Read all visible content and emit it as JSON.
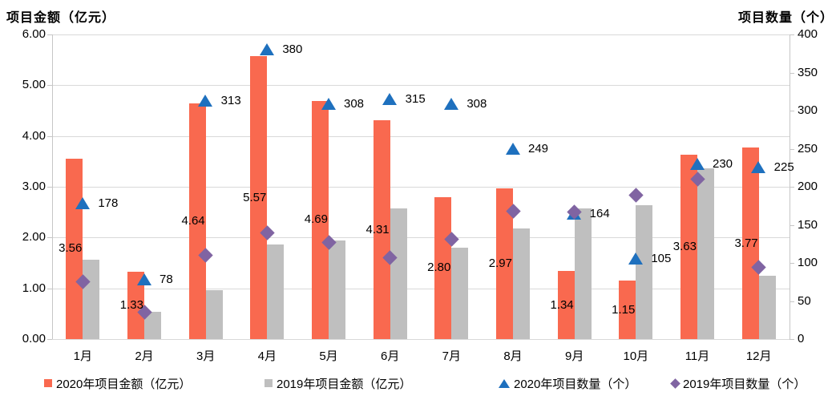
{
  "chart_data": {
    "type": "combo-bar-scatter-dual-axis",
    "categories": [
      "1月",
      "2月",
      "3月",
      "4月",
      "5月",
      "6月",
      "7月",
      "8月",
      "9月",
      "10月",
      "11月",
      "12月"
    ],
    "left_axis": {
      "title": "项目金额（亿元）",
      "min": 0,
      "max": 6,
      "step": 1,
      "tick_labels": [
        "0.00",
        "1.00",
        "2.00",
        "3.00",
        "4.00",
        "5.00",
        "6.00"
      ]
    },
    "right_axis": {
      "title": "项目数量（个）",
      "min": 0,
      "max": 400,
      "step": 50,
      "tick_labels": [
        "0",
        "50",
        "100",
        "150",
        "200",
        "250",
        "300",
        "350",
        "400"
      ]
    },
    "grid": true,
    "legend_position": "bottom",
    "series": [
      {
        "name": "2020年项目金额（亿元）",
        "type": "bar",
        "axis": "left",
        "color": "#f9694f",
        "values": [
          3.56,
          1.33,
          4.64,
          5.57,
          4.69,
          4.31,
          2.8,
          2.97,
          1.34,
          1.15,
          3.63,
          3.77
        ],
        "data_labels": [
          "3.56",
          "1.33",
          "4.64",
          "5.57",
          "4.69",
          "4.31",
          "2.80",
          "2.97",
          "1.34",
          "1.15",
          "3.63",
          "3.77"
        ]
      },
      {
        "name": "2019年项目金额（亿元）",
        "type": "bar",
        "axis": "left",
        "color": "#bfbfbf",
        "values": [
          1.57,
          0.54,
          0.97,
          1.86,
          1.94,
          2.57,
          1.8,
          2.18,
          2.57,
          2.63,
          3.37,
          1.25
        ],
        "data_labels": null
      },
      {
        "name": "2020年项目数量（个）",
        "type": "scatter-triangle",
        "axis": "right",
        "color": "#1e70be",
        "values": [
          178,
          78,
          313,
          380,
          308,
          315,
          308,
          249,
          164,
          105,
          230,
          225
        ],
        "data_labels": [
          "178",
          "78",
          "313",
          "380",
          "308",
          "315",
          "308",
          "249",
          "164",
          "105",
          "230",
          "225"
        ]
      },
      {
        "name": "2019年项目数量（个）",
        "type": "scatter-diamond",
        "axis": "right",
        "color": "#8064a2",
        "values": [
          75,
          35,
          110,
          140,
          127,
          107,
          131,
          168,
          167,
          189,
          210,
          94
        ],
        "data_labels": null
      }
    ],
    "colors": {
      "bar_2020": "#f9694f",
      "bar_2019": "#bfbfbf",
      "marker_2020": "#1e70be",
      "marker_2019": "#8064a2",
      "gridline": "#d9d9d9",
      "axis_line": "#c6c6c6",
      "text": "#000000"
    }
  }
}
